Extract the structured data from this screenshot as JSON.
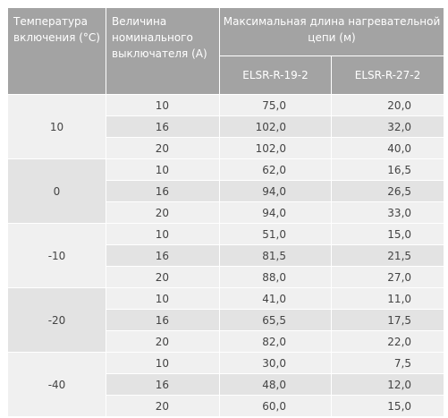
{
  "header": {
    "temperature": "Температура включения (°С)",
    "breaker": "Величина номинального выключателя (А)",
    "max_length": "Максимальная длина нагревательной цепи (м)",
    "models": [
      "ELSR-R-19-2",
      "ELSR-R-27-2"
    ]
  },
  "groups": [
    {
      "temperature": "10",
      "rows": [
        [
          "10",
          "75,0",
          "20,0"
        ],
        [
          "16",
          "102,0",
          "32,0"
        ],
        [
          "20",
          "102,0",
          "40,0"
        ]
      ]
    },
    {
      "temperature": "0",
      "rows": [
        [
          "10",
          "62,0",
          "16,5"
        ],
        [
          "16",
          "94,0",
          "26,5"
        ],
        [
          "20",
          "94,0",
          "33,0"
        ]
      ]
    },
    {
      "temperature": "-10",
      "rows": [
        [
          "10",
          "51,0",
          "15,0"
        ],
        [
          "16",
          "81,5",
          "21,5"
        ],
        [
          "20",
          "88,0",
          "27,0"
        ]
      ]
    },
    {
      "temperature": "-20",
      "rows": [
        [
          "10",
          "41,0",
          "11,0"
        ],
        [
          "16",
          "65,5",
          "17,5"
        ],
        [
          "20",
          "82,0",
          "22,0"
        ]
      ]
    },
    {
      "temperature": "-40",
      "rows": [
        [
          "10",
          "30,0",
          "7,5"
        ],
        [
          "16",
          "48,0",
          "12,0"
        ],
        [
          "20",
          "60,0",
          "15,0"
        ]
      ]
    }
  ]
}
